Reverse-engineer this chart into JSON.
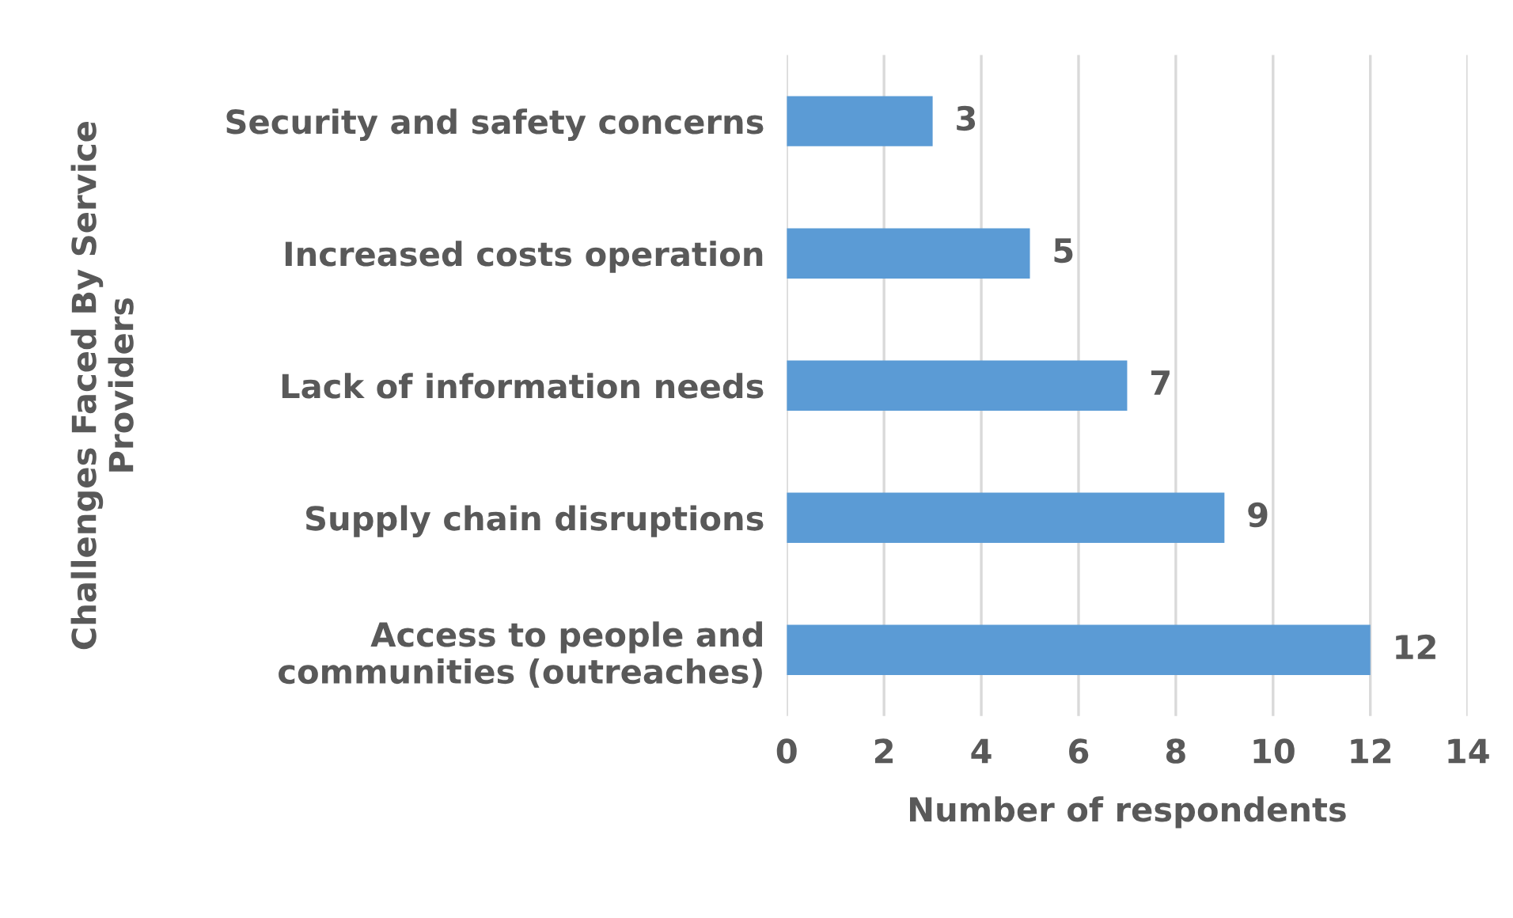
{
  "chart_data": {
    "type": "bar",
    "orientation": "horizontal",
    "categories": [
      "Security and safety concerns",
      "Increased costs operation",
      "Lack of information needs",
      "Supply chain disruptions",
      "Access to people and\ncommunities (outreaches)"
    ],
    "values": [
      3,
      5,
      7,
      9,
      12
    ],
    "color": "#5b9bd5",
    "xlim": [
      0,
      14
    ],
    "xticks": [
      0,
      2,
      4,
      6,
      8,
      10,
      12,
      14
    ],
    "xlabel": "Number of respondents",
    "ylabel": "Challenges Faced By Service\nProviders",
    "grid": "x",
    "data_labels": true
  }
}
